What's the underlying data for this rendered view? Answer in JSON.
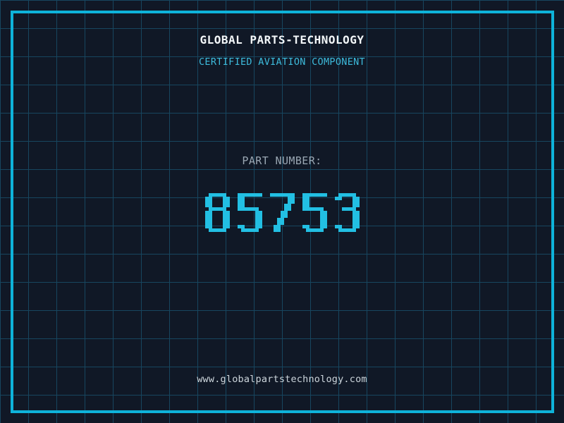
{
  "colors": {
    "background": "#101826",
    "grid_line": "#17465f",
    "frame": "#0eb3da",
    "title": "#f2f6f8",
    "subtitle": "#3dbbdc",
    "label": "#9aa7b3",
    "number": "#22bfe3",
    "footer": "#ccd5db"
  },
  "header": {
    "title": "GLOBAL PARTS-TECHNOLOGY",
    "subtitle": "CERTIFIED AVIATION COMPONENT"
  },
  "part": {
    "label": "PART NUMBER:",
    "number": "85753"
  },
  "footer": {
    "url": "www.globalpartstechnology.com"
  }
}
